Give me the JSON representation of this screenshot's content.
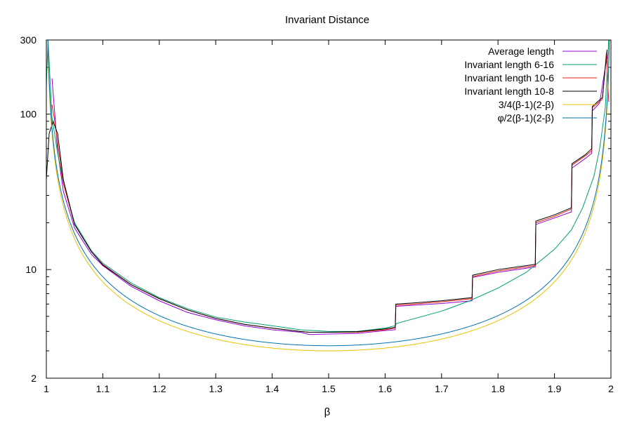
{
  "chart_data": {
    "type": "line",
    "title": "Invariant Distance",
    "xlabel": "β",
    "ylabel": "",
    "xlim": [
      1.0,
      2.0
    ],
    "ylim": [
      2,
      300
    ],
    "yscale": "log",
    "grid": false,
    "legend_position": "top-right",
    "x_ticks": [
      1,
      1.1,
      1.2,
      1.3,
      1.4,
      1.5,
      1.6,
      1.7,
      1.8,
      1.9,
      2
    ],
    "x_tick_labels": [
      "1",
      "1.1",
      "1.2",
      "1.3",
      "1.4",
      "1.5",
      "1.6",
      "1.7",
      "1.8",
      "1.9",
      "2"
    ],
    "y_ticks": [
      2,
      10,
      100,
      300
    ],
    "y_tick_labels": [
      "2",
      "10",
      "100",
      "300"
    ],
    "series": [
      {
        "name": "Average length",
        "color": "#9400d3",
        "points": [
          [
            1.01,
            170
          ],
          [
            1.02,
            58
          ],
          [
            1.03,
            32
          ],
          [
            1.05,
            18.5
          ],
          [
            1.08,
            12.5
          ],
          [
            1.1,
            10.6
          ],
          [
            1.15,
            7.8
          ],
          [
            1.2,
            6.3
          ],
          [
            1.25,
            5.3
          ],
          [
            1.3,
            4.75
          ],
          [
            1.35,
            4.35
          ],
          [
            1.4,
            4.1
          ],
          [
            1.45,
            3.95
          ],
          [
            1.466,
            3.82
          ],
          [
            1.5,
            3.85
          ],
          [
            1.55,
            3.88
          ],
          [
            1.6,
            4.05
          ],
          [
            1.618,
            4.1
          ],
          [
            1.619,
            5.8
          ],
          [
            1.65,
            5.9
          ],
          [
            1.7,
            6.05
          ],
          [
            1.754,
            6.3
          ],
          [
            1.755,
            8.9
          ],
          [
            1.8,
            9.6
          ],
          [
            1.866,
            10.4
          ],
          [
            1.867,
            19.5
          ],
          [
            1.9,
            21.5
          ],
          [
            1.93,
            23.5
          ],
          [
            1.931,
            45
          ],
          [
            1.955,
            52
          ],
          [
            1.966,
            56
          ],
          [
            1.967,
            105
          ],
          [
            1.98,
            118
          ],
          [
            1.99,
            200
          ],
          [
            1.995,
            250
          ]
        ]
      },
      {
        "name": "Invariant length 6-16",
        "color": "#009e73",
        "points": [
          [
            1.0,
            150
          ],
          [
            1.003,
            300
          ],
          [
            1.01,
            95
          ],
          [
            1.02,
            56
          ],
          [
            1.03,
            36
          ],
          [
            1.05,
            20
          ],
          [
            1.08,
            13.2
          ],
          [
            1.1,
            11
          ],
          [
            1.15,
            8.2
          ],
          [
            1.2,
            6.6
          ],
          [
            1.25,
            5.6
          ],
          [
            1.3,
            4.95
          ],
          [
            1.35,
            4.6
          ],
          [
            1.4,
            4.35
          ],
          [
            1.45,
            4.1
          ],
          [
            1.5,
            4.0
          ],
          [
            1.55,
            4.0
          ],
          [
            1.6,
            4.2
          ],
          [
            1.618,
            4.35
          ],
          [
            1.62,
            4.5
          ],
          [
            1.7,
            5.4
          ],
          [
            1.75,
            6.3
          ],
          [
            1.8,
            7.6
          ],
          [
            1.85,
            9.6
          ],
          [
            1.9,
            13.5
          ],
          [
            1.93,
            18
          ],
          [
            1.95,
            25
          ],
          [
            1.97,
            40
          ],
          [
            1.98,
            60
          ],
          [
            1.99,
            110
          ],
          [
            1.996,
            300
          ]
        ]
      },
      {
        "name": "Invariant length 10-6",
        "color": "#e51e10",
        "points": [
          [
            1.01,
            115
          ],
          [
            1.015,
            90
          ],
          [
            1.02,
            65
          ],
          [
            1.03,
            36
          ],
          [
            1.05,
            19.5
          ],
          [
            1.08,
            13
          ],
          [
            1.1,
            10.8
          ],
          [
            1.15,
            8
          ],
          [
            1.2,
            6.5
          ],
          [
            1.25,
            5.5
          ],
          [
            1.3,
            4.85
          ],
          [
            1.35,
            4.45
          ],
          [
            1.4,
            4.2
          ],
          [
            1.45,
            4.0
          ],
          [
            1.466,
            3.95
          ],
          [
            1.5,
            3.95
          ],
          [
            1.55,
            3.95
          ],
          [
            1.6,
            4.1
          ],
          [
            1.618,
            4.2
          ],
          [
            1.619,
            5.9
          ],
          [
            1.65,
            6.0
          ],
          [
            1.7,
            6.2
          ],
          [
            1.754,
            6.5
          ],
          [
            1.755,
            9.0
          ],
          [
            1.8,
            9.8
          ],
          [
            1.866,
            10.6
          ],
          [
            1.867,
            20
          ],
          [
            1.9,
            22
          ],
          [
            1.93,
            24.5
          ],
          [
            1.931,
            47
          ],
          [
            1.955,
            54
          ],
          [
            1.966,
            58
          ],
          [
            1.967,
            110
          ],
          [
            1.985,
            125
          ],
          [
            1.992,
            250
          ],
          [
            1.996,
            120
          ]
        ]
      },
      {
        "name": "Invariant length 10-8",
        "color": "#000000",
        "points": [
          [
            1.0,
            38
          ],
          [
            1.005,
            75
          ],
          [
            1.012,
            90
          ],
          [
            1.02,
            75
          ],
          [
            1.03,
            38
          ],
          [
            1.05,
            19.5
          ],
          [
            1.08,
            13
          ],
          [
            1.1,
            10.7
          ],
          [
            1.15,
            8
          ],
          [
            1.2,
            6.5
          ],
          [
            1.25,
            5.5
          ],
          [
            1.3,
            4.85
          ],
          [
            1.35,
            4.45
          ],
          [
            1.4,
            4.2
          ],
          [
            1.45,
            4.0
          ],
          [
            1.466,
            3.95
          ],
          [
            1.5,
            3.95
          ],
          [
            1.55,
            3.98
          ],
          [
            1.6,
            4.15
          ],
          [
            1.618,
            4.25
          ],
          [
            1.619,
            6.0
          ],
          [
            1.65,
            6.1
          ],
          [
            1.7,
            6.3
          ],
          [
            1.754,
            6.6
          ],
          [
            1.755,
            9.2
          ],
          [
            1.8,
            10
          ],
          [
            1.866,
            10.8
          ],
          [
            1.867,
            20.5
          ],
          [
            1.9,
            22.5
          ],
          [
            1.93,
            25
          ],
          [
            1.931,
            48
          ],
          [
            1.955,
            55
          ],
          [
            1.966,
            60
          ],
          [
            1.967,
            112
          ],
          [
            1.985,
            128
          ],
          [
            1.993,
            260
          ]
        ]
      },
      {
        "name": "3/4(β-1)(2-β)",
        "color": "#e6c300",
        "formula": "0.75/((x-1)*(2-x))",
        "domain": [
          1.0,
          2.0
        ]
      },
      {
        "name": "φ/2(β-1)(2-β)",
        "color": "#0072b2",
        "formula": "0.809/((x-1)*(2-x))",
        "domain": [
          1.0,
          2.0
        ]
      }
    ]
  }
}
